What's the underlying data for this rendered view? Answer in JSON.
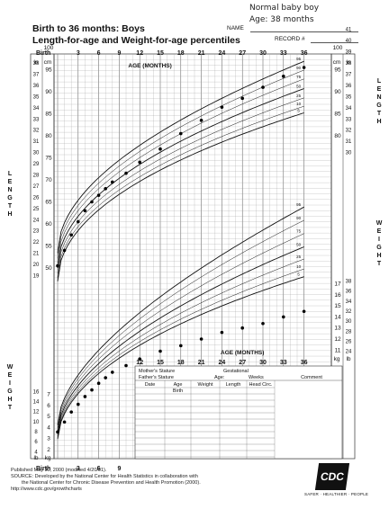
{
  "annotation": {
    "line1": "Normal baby boy",
    "line2": "Age: 38 months"
  },
  "title": {
    "line1": "Birth to 36 months: Boys",
    "line2": "Length-for-age and Weight-for-age percentiles"
  },
  "header_fields": {
    "name": "NAME",
    "record": "RECORD #"
  },
  "side_labels": {
    "length": "LENGTH",
    "weight": "WEIGHT"
  },
  "record_table": {
    "mother_stature": "Mother's Stature",
    "father_stature": "Father's Stature",
    "gestational": "Gestational",
    "age": "Age:",
    "weeks": "Weeks",
    "comment": "Comment",
    "columns": [
      "Date",
      "Age",
      "Weight",
      "Length",
      "Head Circ."
    ],
    "first_age": "Birth"
  },
  "footer": {
    "published": "Published May 30, 2000 (modified 4/20/01).",
    "source1": "SOURCE: Developed by the National Center for Health Statistics in collaboration with",
    "source2": "the National Center for Chronic Disease Prevention and Health Promotion (2000).",
    "url": "http://www.cdc.gov/growthcharts",
    "logo": "CDC",
    "tagline": "SAFER · HEALTHIER · PEOPLE"
  },
  "colors": {
    "grid": "#9a9a9a",
    "grid_major": "#555555",
    "curve": "#111111",
    "point": "#000000"
  },
  "chart_data": [
    {
      "type": "scatter",
      "title": "Length-for-age",
      "x_axis": {
        "label": "AGE (MONTHS)",
        "birth_label": "Birth",
        "ticks": [
          3,
          6,
          9,
          12,
          15,
          18,
          21,
          24,
          27,
          30,
          33,
          36
        ],
        "range": [
          0,
          36
        ]
      },
      "y_left_in": {
        "label": "in",
        "ticks": [
          19,
          20,
          21,
          22,
          23,
          24,
          25,
          26,
          27,
          28,
          29,
          30,
          31,
          32,
          33,
          34,
          35,
          36,
          37,
          38,
          39,
          40,
          41
        ]
      },
      "y_left_cm": {
        "label": "cm",
        "ticks": [
          50,
          55,
          60,
          65,
          70,
          75,
          80,
          85,
          90,
          95,
          100
        ]
      },
      "y_right_in": {
        "label": "in",
        "ticks": [
          30,
          31,
          32,
          33,
          34,
          35,
          36,
          37,
          38,
          39,
          40,
          41
        ]
      },
      "y_right_cm": {
        "label": "cm",
        "ticks": [
          80,
          85,
          90,
          95,
          100
        ]
      },
      "percentile_labels": [
        "95",
        "90",
        "75",
        "50",
        "25",
        "10",
        "5"
      ],
      "series": [
        {
          "x": [
            0,
            1,
            2,
            3,
            4,
            5,
            6,
            7,
            8,
            10,
            12,
            15,
            18,
            21,
            24,
            27,
            30,
            33,
            36
          ],
          "y_cm": [
            50.5,
            54,
            57.5,
            60.5,
            63,
            65,
            66.5,
            68,
            69.5,
            71.5,
            74,
            77,
            80.5,
            83.5,
            86.5,
            88.5,
            91,
            93.5,
            95.5
          ]
        }
      ]
    },
    {
      "type": "scatter",
      "title": "Weight-for-age",
      "x_axis": {
        "label": "AGE (MONTHS)",
        "ticks": [
          12,
          15,
          18,
          21,
          24,
          27,
          30,
          33,
          36
        ]
      },
      "y_left_lb": {
        "label": "lb",
        "ticks": [
          4,
          6,
          8,
          10,
          12,
          14,
          16
        ]
      },
      "y_left_kg": {
        "label": "kg",
        "ticks": [
          2,
          3,
          4,
          5,
          6,
          7
        ]
      },
      "y_right_lb": {
        "label": "lb",
        "ticks": [
          16,
          18,
          20,
          22,
          24,
          26,
          28,
          30,
          32,
          34,
          36,
          38
        ]
      },
      "y_right_kg": {
        "label": "kg",
        "ticks": [
          7,
          8,
          9,
          10,
          11,
          12,
          13,
          14,
          15,
          16,
          17
        ]
      },
      "percentile_labels": [
        "95",
        "90",
        "75",
        "50",
        "25",
        "10",
        "5"
      ],
      "series": [
        {
          "x": [
            0,
            1,
            2,
            3,
            4,
            5,
            6,
            7,
            8,
            10,
            12,
            15,
            18,
            21,
            24,
            27,
            30,
            33,
            36
          ],
          "y_kg": [
            3.6,
            4.5,
            5.4,
            6.1,
            6.8,
            7.4,
            8.0,
            8.5,
            9.0,
            9.6,
            10.2,
            10.9,
            11.4,
            12.0,
            12.6,
            13.0,
            13.4,
            14.0,
            14.5
          ]
        }
      ]
    }
  ]
}
